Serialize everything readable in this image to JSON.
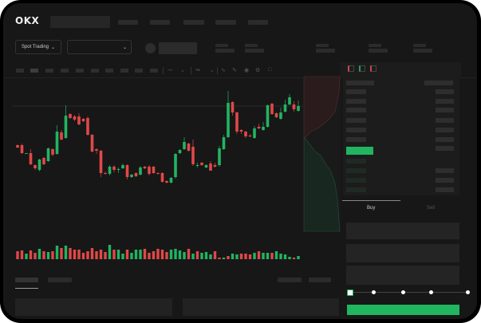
{
  "app": {
    "brand": "OKX"
  },
  "header": {
    "spot_trading_label": "Spot Trading"
  },
  "trade_panel": {
    "tabs": [
      {
        "label": "Buy",
        "active": true
      },
      {
        "label": "Sell",
        "active": false
      }
    ],
    "slider_level_percent": 0
  },
  "colors": {
    "up": "#22b462",
    "down": "#e04848",
    "buy_button": "#21b55f",
    "background": "#171717"
  },
  "icons": [
    "chevron-down-icon",
    "orderbook-both-icon",
    "orderbook-bids-icon",
    "orderbook-asks-icon",
    "line-tool-icon",
    "pencil-icon",
    "camera-icon",
    "settings-icon",
    "fullscreen-icon"
  ],
  "chart_data": {
    "type": "candlestick",
    "grid": false,
    "candles_ohlc": [
      [
        118,
        119,
        114,
        115
      ],
      [
        118,
        120,
        107,
        108
      ],
      [
        107,
        108,
        107,
        108
      ],
      [
        108,
        113,
        93,
        94
      ],
      [
        93,
        94,
        87,
        89
      ],
      [
        87,
        101,
        85,
        100
      ],
      [
        102,
        103,
        93,
        94
      ],
      [
        98,
        115,
        97,
        114
      ],
      [
        113,
        114,
        104,
        106
      ],
      [
        107,
        143,
        106,
        135
      ],
      [
        134,
        137,
        124,
        125
      ],
      [
        127,
        168,
        126,
        155
      ],
      [
        157,
        158,
        151,
        152
      ],
      [
        154,
        156,
        148,
        150
      ],
      [
        154,
        158,
        143,
        144
      ],
      [
        151,
        152,
        147,
        148
      ],
      [
        152,
        154,
        130,
        131
      ],
      [
        131,
        132,
        109,
        110
      ],
      [
        113,
        114,
        107,
        111
      ],
      [
        111,
        112,
        78,
        83
      ],
      [
        83,
        85,
        81,
        82
      ],
      [
        82,
        93,
        80,
        91
      ],
      [
        91,
        93,
        84,
        87
      ],
      [
        87,
        90,
        83,
        88
      ],
      [
        89,
        95,
        88,
        93
      ],
      [
        93,
        94,
        75,
        78
      ],
      [
        78,
        82,
        77,
        81
      ],
      [
        83,
        84,
        78,
        79
      ],
      [
        81,
        92,
        80,
        90
      ],
      [
        91,
        92,
        88,
        89
      ],
      [
        91,
        93,
        80,
        82
      ],
      [
        91,
        92,
        82,
        83
      ],
      [
        83,
        84,
        81,
        82
      ],
      [
        83,
        84,
        71,
        72
      ],
      [
        73,
        74,
        70,
        71
      ],
      [
        71,
        78,
        70,
        77
      ],
      [
        78,
        108,
        76,
        107
      ],
      [
        108,
        113,
        107,
        112
      ],
      [
        113,
        128,
        112,
        122
      ],
      [
        120,
        121,
        110,
        111
      ],
      [
        116,
        125,
        92,
        94
      ],
      [
        92,
        96,
        90,
        93
      ],
      [
        96,
        97,
        92,
        93
      ],
      [
        90,
        94,
        89,
        93
      ],
      [
        95,
        98,
        86,
        86
      ],
      [
        93,
        96,
        90,
        91
      ],
      [
        93,
        117,
        91,
        114
      ],
      [
        113,
        131,
        112,
        128
      ],
      [
        128,
        186,
        127,
        171
      ],
      [
        172,
        173,
        155,
        159
      ],
      [
        159,
        160,
        132,
        135
      ],
      [
        137,
        138,
        132,
        135
      ],
      [
        135,
        136,
        127,
        129
      ],
      [
        130,
        132,
        128,
        129
      ],
      [
        127,
        142,
        126,
        139
      ],
      [
        141,
        145,
        138,
        139
      ],
      [
        137,
        147,
        136,
        141
      ],
      [
        141,
        169,
        140,
        168
      ],
      [
        170,
        171,
        156,
        157
      ],
      [
        158,
        159,
        152,
        153
      ],
      [
        151,
        165,
        150,
        159
      ],
      [
        160,
        175,
        159,
        169
      ],
      [
        169,
        182,
        168,
        178
      ],
      [
        169,
        173,
        160,
        163
      ],
      [
        161,
        174,
        160,
        167
      ]
    ],
    "volume": [
      {
        "v": 10,
        "up": false
      },
      {
        "v": 11,
        "up": false
      },
      {
        "v": 7,
        "up": true
      },
      {
        "v": 11,
        "up": false
      },
      {
        "v": 8,
        "up": false
      },
      {
        "v": 13,
        "up": true
      },
      {
        "v": 10,
        "up": false
      },
      {
        "v": 9,
        "up": true
      },
      {
        "v": 10,
        "up": false
      },
      {
        "v": 17,
        "up": true
      },
      {
        "v": 14,
        "up": false
      },
      {
        "v": 17,
        "up": true
      },
      {
        "v": 14,
        "up": false
      },
      {
        "v": 12,
        "up": false
      },
      {
        "v": 12,
        "up": false
      },
      {
        "v": 8,
        "up": false
      },
      {
        "v": 10,
        "up": false
      },
      {
        "v": 14,
        "up": false
      },
      {
        "v": 10,
        "up": false
      },
      {
        "v": 12,
        "up": false
      },
      {
        "v": 9,
        "up": false
      },
      {
        "v": 18,
        "up": true
      },
      {
        "v": 12,
        "up": false
      },
      {
        "v": 12,
        "up": true
      },
      {
        "v": 7,
        "up": true
      },
      {
        "v": 12,
        "up": false
      },
      {
        "v": 8,
        "up": true
      },
      {
        "v": 12,
        "up": true
      },
      {
        "v": 12,
        "up": true
      },
      {
        "v": 13,
        "up": false
      },
      {
        "v": 8,
        "up": false
      },
      {
        "v": 10,
        "up": false
      },
      {
        "v": 13,
        "up": false
      },
      {
        "v": 12,
        "up": false
      },
      {
        "v": 9,
        "up": false
      },
      {
        "v": 12,
        "up": true
      },
      {
        "v": 13,
        "up": true
      },
      {
        "v": 11,
        "up": true
      },
      {
        "v": 9,
        "up": true
      },
      {
        "v": 13,
        "up": false
      },
      {
        "v": 7,
        "up": true
      },
      {
        "v": 10,
        "up": false
      },
      {
        "v": 8,
        "up": true
      },
      {
        "v": 9,
        "up": true
      },
      {
        "v": 6,
        "up": true
      },
      {
        "v": 10,
        "up": false
      },
      {
        "v": 2,
        "up": false
      },
      {
        "v": 2,
        "up": true
      },
      {
        "v": 4,
        "up": false
      },
      {
        "v": 7,
        "up": true
      },
      {
        "v": 6,
        "up": true
      },
      {
        "v": 7,
        "up": false
      },
      {
        "v": 7,
        "up": false
      },
      {
        "v": 6,
        "up": false
      },
      {
        "v": 8,
        "up": true
      },
      {
        "v": 10,
        "up": false
      },
      {
        "v": 8,
        "up": true
      },
      {
        "v": 8,
        "up": true
      },
      {
        "v": 8,
        "up": false
      },
      {
        "v": 10,
        "up": true
      },
      {
        "v": 7,
        "up": true
      },
      {
        "v": 6,
        "up": true
      },
      {
        "v": 3,
        "up": true
      },
      {
        "v": 2,
        "up": false
      },
      {
        "v": 4,
        "up": true
      }
    ]
  }
}
